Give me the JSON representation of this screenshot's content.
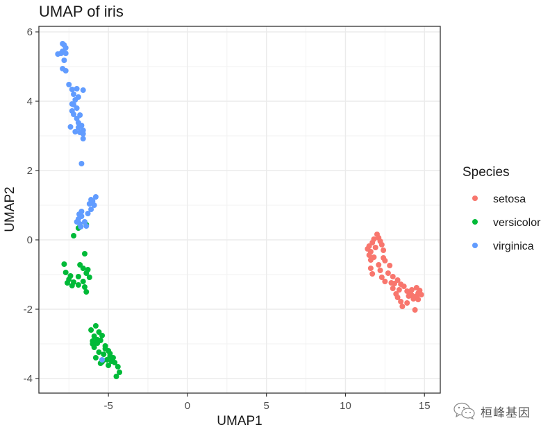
{
  "chart_data": {
    "type": "scatter",
    "title": "UMAP of iris",
    "xlabel": "UMAP1",
    "ylabel": "UMAP2",
    "xlim": [
      -9.4,
      16.0
    ],
    "ylim": [
      -4.42,
      6.16
    ],
    "x_ticks": [
      -5,
      0,
      5,
      10,
      15
    ],
    "x_tick_labels": [
      "-5",
      "0",
      "5",
      "10",
      "15"
    ],
    "y_ticks": [
      -4,
      -2,
      0,
      2,
      4,
      6
    ],
    "y_tick_labels": [
      "-4",
      "-2",
      "0",
      "2",
      "4",
      "6"
    ],
    "grid": true,
    "legend": {
      "title": "Species",
      "position": "right",
      "entries": [
        "setosa",
        "versicolor",
        "virginica"
      ]
    },
    "series": [
      {
        "name": "setosa",
        "color": "#F8766D",
        "points": [
          [
            12.0,
            0.16
          ],
          [
            12.1,
            0.06
          ],
          [
            11.8,
            0.02
          ],
          [
            12.2,
            -0.04
          ],
          [
            11.7,
            -0.08
          ],
          [
            12.3,
            -0.14
          ],
          [
            11.5,
            -0.18
          ],
          [
            11.4,
            -0.26
          ],
          [
            11.9,
            -0.22
          ],
          [
            11.6,
            -0.34
          ],
          [
            12.4,
            -0.3
          ],
          [
            11.5,
            -0.44
          ],
          [
            11.8,
            -0.5
          ],
          [
            12.4,
            -0.52
          ],
          [
            12.5,
            -0.6
          ],
          [
            11.6,
            -0.58
          ],
          [
            12.1,
            -0.72
          ],
          [
            11.6,
            -0.82
          ],
          [
            11.7,
            -0.98
          ],
          [
            12.8,
            -0.74
          ],
          [
            12.7,
            -0.96
          ],
          [
            12.3,
            -1.08
          ],
          [
            12.5,
            -1.2
          ],
          [
            13.0,
            -1.06
          ],
          [
            13.3,
            -1.16
          ],
          [
            13.1,
            -1.26
          ],
          [
            13.5,
            -1.28
          ],
          [
            13.7,
            -1.34
          ],
          [
            13.0,
            -1.4
          ],
          [
            13.2,
            -1.56
          ],
          [
            13.9,
            -1.48
          ],
          [
            14.2,
            -1.44
          ],
          [
            14.5,
            -1.38
          ],
          [
            14.7,
            -1.46
          ],
          [
            14.2,
            -1.6
          ],
          [
            14.5,
            -1.62
          ],
          [
            14.8,
            -1.58
          ],
          [
            14.3,
            -1.7
          ],
          [
            14.6,
            -1.72
          ],
          [
            13.3,
            -1.66
          ],
          [
            13.5,
            -1.78
          ],
          [
            13.9,
            -1.82
          ],
          [
            13.6,
            -1.92
          ],
          [
            14.4,
            -2.02
          ],
          [
            14.1,
            -1.52
          ],
          [
            14.0,
            -1.62
          ],
          [
            12.9,
            -1.24
          ],
          [
            13.4,
            -1.44
          ],
          [
            14.6,
            -1.54
          ],
          [
            12.2,
            -0.88
          ]
        ]
      },
      {
        "name": "versicolor",
        "color": "#00BA38",
        "points": [
          [
            -6.4,
            0.44
          ],
          [
            -6.9,
            0.34
          ],
          [
            -7.2,
            0.12
          ],
          [
            -6.5,
            -0.4
          ],
          [
            -7.8,
            -0.7
          ],
          [
            -6.8,
            -0.72
          ],
          [
            -6.6,
            -0.82
          ],
          [
            -6.3,
            -0.86
          ],
          [
            -7.7,
            -0.94
          ],
          [
            -7.4,
            -1.04
          ],
          [
            -6.4,
            -0.96
          ],
          [
            -6.9,
            -1.06
          ],
          [
            -7.5,
            -1.14
          ],
          [
            -6.2,
            -1.08
          ],
          [
            -7.2,
            -1.22
          ],
          [
            -6.6,
            -1.2
          ],
          [
            -7.6,
            -1.24
          ],
          [
            -6.5,
            -1.36
          ],
          [
            -7.3,
            -1.32
          ],
          [
            -6.9,
            -1.3
          ],
          [
            -6.4,
            -1.5
          ],
          [
            -5.8,
            -2.48
          ],
          [
            -6.1,
            -2.6
          ],
          [
            -5.6,
            -2.66
          ],
          [
            -5.9,
            -2.78
          ],
          [
            -5.4,
            -2.76
          ],
          [
            -6.0,
            -2.92
          ],
          [
            -5.7,
            -2.98
          ],
          [
            -5.2,
            -3.06
          ],
          [
            -5.9,
            -3.1
          ],
          [
            -5.0,
            -3.2
          ],
          [
            -5.6,
            -3.24
          ],
          [
            -5.3,
            -3.3
          ],
          [
            -4.9,
            -3.36
          ],
          [
            -5.8,
            -3.4
          ],
          [
            -5.1,
            -3.46
          ],
          [
            -4.8,
            -3.5
          ],
          [
            -5.4,
            -3.52
          ],
          [
            -4.6,
            -3.54
          ],
          [
            -5.0,
            -3.62
          ],
          [
            -4.3,
            -3.82
          ],
          [
            -4.5,
            -3.94
          ],
          [
            -5.5,
            -3.56
          ],
          [
            -4.7,
            -3.4
          ],
          [
            -5.2,
            -3.14
          ],
          [
            -4.4,
            -3.66
          ],
          [
            -5.7,
            -2.88
          ],
          [
            -6.0,
            -3.0
          ],
          [
            -4.9,
            -3.28
          ],
          [
            -5.5,
            -2.9
          ]
        ]
      },
      {
        "name": "virginica",
        "color": "#619CFF",
        "points": [
          [
            -7.9,
            5.66
          ],
          [
            -7.8,
            5.62
          ],
          [
            -7.7,
            5.54
          ],
          [
            -7.9,
            5.44
          ],
          [
            -8.0,
            5.38
          ],
          [
            -8.2,
            5.36
          ],
          [
            -7.7,
            5.38
          ],
          [
            -7.8,
            5.18
          ],
          [
            -7.9,
            4.94
          ],
          [
            -7.7,
            4.88
          ],
          [
            -7.5,
            4.48
          ],
          [
            -7.3,
            4.34
          ],
          [
            -7.0,
            4.36
          ],
          [
            -6.9,
            4.12
          ],
          [
            -7.1,
            4.04
          ],
          [
            -7.3,
            3.92
          ],
          [
            -6.6,
            4.32
          ],
          [
            -7.3,
            3.72
          ],
          [
            -7.0,
            3.8
          ],
          [
            -7.2,
            3.62
          ],
          [
            -6.8,
            3.6
          ],
          [
            -6.7,
            3.3
          ],
          [
            -6.9,
            3.38
          ],
          [
            -7.4,
            3.26
          ],
          [
            -7.1,
            3.12
          ],
          [
            -6.6,
            3.16
          ],
          [
            -6.8,
            3.1
          ],
          [
            -6.6,
            3.06
          ],
          [
            -6.6,
            2.92
          ],
          [
            -6.7,
            2.2
          ],
          [
            -7.2,
            3.9
          ],
          [
            -5.8,
            1.24
          ],
          [
            -6.0,
            1.12
          ],
          [
            -6.2,
            1.04
          ],
          [
            -5.9,
            1.0
          ],
          [
            -6.1,
            0.88
          ],
          [
            -6.7,
            0.82
          ],
          [
            -6.7,
            0.68
          ],
          [
            -6.3,
            0.76
          ],
          [
            -6.9,
            0.6
          ],
          [
            -7.0,
            0.52
          ],
          [
            -6.8,
            0.46
          ],
          [
            -6.4,
            0.4
          ],
          [
            -6.75,
            0.38
          ],
          [
            -6.5,
            0.52
          ],
          [
            -6.1,
            1.16
          ],
          [
            -6.85,
            0.74
          ],
          [
            -5.4,
            -3.46
          ],
          [
            -7.0,
            3.5
          ],
          [
            -7.2,
            4.2
          ],
          [
            -6.9,
            3.24
          ]
        ]
      }
    ]
  },
  "watermark": {
    "text": "桓峰基因",
    "icon": "wechat-icon"
  }
}
